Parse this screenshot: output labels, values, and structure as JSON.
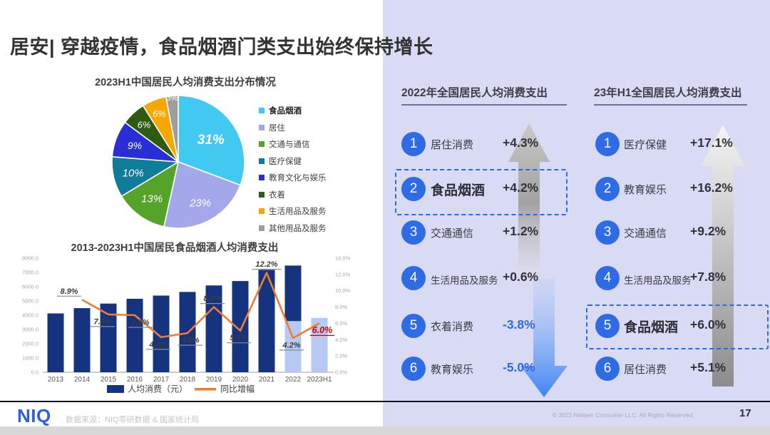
{
  "slide": {
    "title": "居安| 穿越疫情，食品烟酒门类支出始终保持增长",
    "page_number": "17",
    "footer": {
      "logo": "NIQ",
      "source": "数据来源：NIQ零研数据 & 国家统计局",
      "copyright": "© 2023 Nielsen Consumer LLC. All Rights Reserved."
    }
  },
  "colors": {
    "right_panel_bg": "#d9daf4",
    "accent_blue": "#2d6ce4",
    "navy_bar": "#16337f",
    "light_blue_bar": "#b6c9f3",
    "orange_line": "#ed7d31",
    "red_highlight": "#cc0000",
    "negative_value_blue": "#2b6be3"
  },
  "chart_data": [
    {
      "type": "pie",
      "title": "2023H1中国居民人均消费支出分布情况",
      "legend_position": "right",
      "legend": [
        "食品烟酒",
        "居住",
        "交通与通信",
        "医疗保健",
        "教育文化与娱乐",
        "衣着",
        "生活用品及服务",
        "其他用品及服务"
      ],
      "values": [
        31,
        23,
        13,
        10,
        9,
        6,
        6,
        3
      ],
      "labels": [
        "31%",
        "23%",
        "13%",
        "10%",
        "9%",
        "6%",
        "6%",
        "3%"
      ],
      "colors": [
        "#41c9f1",
        "#a4a8ea",
        "#55a329",
        "#107d98",
        "#2a2ed6",
        "#2f5a12",
        "#f6a802",
        "#9e9e9e"
      ],
      "label_r": [
        0.6,
        0.7,
        0.68,
        0.7,
        0.7,
        0.76,
        0.78,
        0.97
      ],
      "label_size": [
        19,
        15,
        15,
        15,
        14,
        13,
        13,
        11.5
      ]
    },
    {
      "type": "bar+line",
      "title": "2013-2023H1中国居民食品烟酒人均消费支出",
      "categories": [
        "2013",
        "2014",
        "2015",
        "2016",
        "2017",
        "2018",
        "2019",
        "2020",
        "2021",
        "2022",
        "2023H1"
      ],
      "series": [
        {
          "name": "人均消费（元）",
          "type": "bar",
          "color": "#16337f",
          "in_legend": true,
          "values": [
            4127,
            4494,
            4814,
            5151,
            5374,
            5631,
            6084,
            6397,
            7178,
            7481,
            null
          ]
        },
        {
          "name": "H1人均消费（浅色柱，估算）",
          "type": "bar",
          "color": "#b6c9f3",
          "in_legend": false,
          "values": [
            null,
            null,
            null,
            null,
            null,
            null,
            null,
            null,
            null,
            3592,
            3808
          ]
        },
        {
          "name": "同比增幅",
          "type": "line",
          "color": "#ed7d31",
          "in_legend": true,
          "values": [
            null,
            8.9,
            7.1,
            7.0,
            4.3,
            4.8,
            8.0,
            5.1,
            12.2,
            4.2,
            6.0
          ]
        }
      ],
      "line_labels": [
        {
          "i": 1,
          "text": "8.9%",
          "pos": "above",
          "dx": -18,
          "red": false
        },
        {
          "i": 2,
          "text": "7.1%",
          "pos": "below",
          "dx": -8,
          "red": false
        },
        {
          "i": 3,
          "text": "7.0%",
          "pos": "below",
          "dx": 8,
          "red": false
        },
        {
          "i": 4,
          "text": "4.3%",
          "pos": "below",
          "dx": -4,
          "red": false
        },
        {
          "i": 5,
          "text": "4.8%",
          "pos": "below",
          "dx": 4,
          "red": false
        },
        {
          "i": 6,
          "text": "8.0%",
          "pos": "above",
          "dx": -2,
          "red": false
        },
        {
          "i": 7,
          "text": "5.1%",
          "pos": "below",
          "dx": -2,
          "red": false
        },
        {
          "i": 8,
          "text": "12.2%",
          "pos": "above",
          "dx": 0,
          "red": false
        },
        {
          "i": 9,
          "text": "4.2%",
          "pos": "below",
          "dx": -2,
          "red": false
        },
        {
          "i": 10,
          "text": "6.0%",
          "pos": "below",
          "dx": 4,
          "red": true
        }
      ],
      "y_left": {
        "min": 0,
        "max": 8000,
        "step": 1000,
        "ticks": [
          "0.0",
          "1000.0",
          "2000.0",
          "3000.0",
          "4000.0",
          "5000.0",
          "6000.0",
          "7000.0",
          "8000.0"
        ]
      },
      "y_right": {
        "min": 0,
        "max": 14,
        "step": 2,
        "ticks": [
          "0.0%",
          "2.0%",
          "4.0%",
          "6.0%",
          "8.0%",
          "10.0%",
          "12.0%",
          "14.0%"
        ]
      },
      "legend": [
        {
          "label": "人均消费（元）",
          "swatch": "bar",
          "color": "#16337f"
        },
        {
          "label": "同比增幅",
          "swatch": "line",
          "color": "#ed7d31"
        }
      ],
      "grid": false
    }
  ],
  "rankings": [
    {
      "header": "2022年全国居民人均消费支出",
      "items": [
        {
          "rank": "1",
          "label": "居住消费",
          "value": "+4.3%",
          "negative": false,
          "highlight": false
        },
        {
          "rank": "2",
          "label": "食品烟酒",
          "value": "+4.2%",
          "negative": false,
          "highlight": true
        },
        {
          "rank": "3",
          "label": "交通通信",
          "value": "+1.2%",
          "negative": false,
          "highlight": false
        },
        {
          "rank": "4",
          "label": "生活用品及服务",
          "value": "+0.6%",
          "negative": false,
          "highlight": false
        },
        {
          "rank": "5",
          "label": "衣着消费",
          "value": "-3.8%",
          "negative": true,
          "highlight": false
        },
        {
          "rank": "6",
          "label": "教育娱乐",
          "value": "-5.0%",
          "negative": true,
          "highlight": false
        }
      ]
    },
    {
      "header": "23年H1全国居民人均消费支出",
      "items": [
        {
          "rank": "1",
          "label": "医疗保健",
          "value": "+17.1%",
          "negative": false,
          "highlight": false
        },
        {
          "rank": "2",
          "label": "教育娱乐",
          "value": "+16.2%",
          "negative": false,
          "highlight": false
        },
        {
          "rank": "3",
          "label": "交通通信",
          "value": "+9.2%",
          "negative": false,
          "highlight": false
        },
        {
          "rank": "4",
          "label": "生活用品及服务",
          "value": "+7.8%",
          "negative": false,
          "highlight": false
        },
        {
          "rank": "5",
          "label": "食品烟酒",
          "value": "+6.0%",
          "negative": false,
          "highlight": true
        },
        {
          "rank": "6",
          "label": "居住消费",
          "value": "+5.1%",
          "negative": false,
          "highlight": false
        }
      ]
    }
  ]
}
